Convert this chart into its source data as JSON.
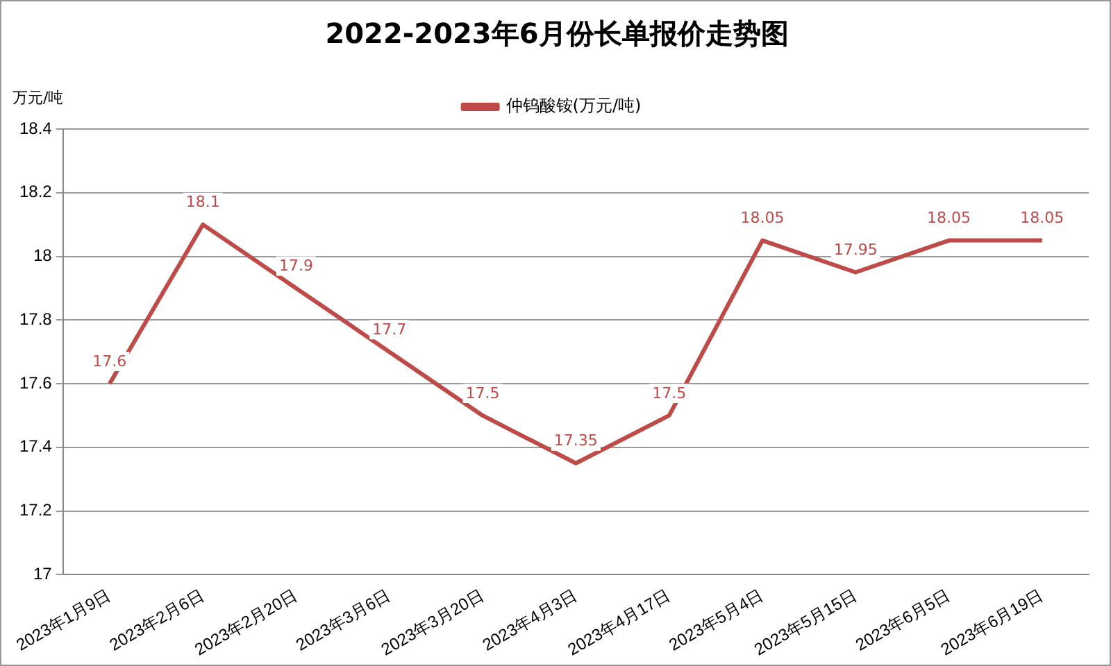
{
  "chart_data": {
    "type": "line",
    "title": "2022-2023年6月份长单报价走势图",
    "ylabel": "万元/吨",
    "categories": [
      "2023年1月9日",
      "2023年2月6日",
      "2023年2月20日",
      "2023年3月6日",
      "2023年3月20日",
      "2023年4月3日",
      "2023年4月17日",
      "2023年5月4日",
      "2023年5月15日",
      "2023年6月5日",
      "2023年6月19日"
    ],
    "series": [
      {
        "name": "仲钨酸铵(万元/吨)",
        "color": "#be4b48",
        "values": [
          17.6,
          18.1,
          17.9,
          17.7,
          17.5,
          17.35,
          17.5,
          18.05,
          17.95,
          18.05,
          18.05
        ]
      }
    ],
    "ylim": [
      17,
      18.4
    ],
    "yticks": [
      17,
      17.2,
      17.4,
      17.6,
      17.8,
      18,
      18.2,
      18.4
    ],
    "grid": "y",
    "legend": "top",
    "marker": "none",
    "line_style": "solid",
    "data_labels": true
  }
}
